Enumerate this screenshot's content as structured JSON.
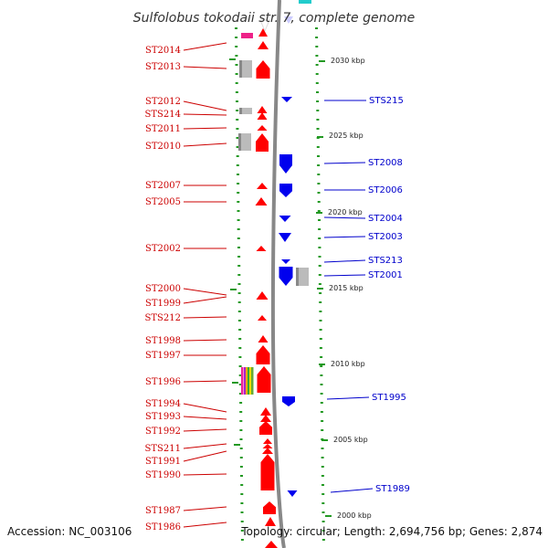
{
  "title": "Sulfolobus tokodaii str. 7, complete genome",
  "footer": {
    "accession": "Accession: NC_003106",
    "topology": "Topology: circular; Length: 2,694,756 bp; Genes: 2,874"
  },
  "colors": {
    "forward": "#ff0000",
    "reverse": "#0000ee",
    "pseudogene": "#bbbbbb",
    "rna": "#ee2288",
    "tick": "#229922",
    "backbone": "#888888"
  },
  "scale_labels": [
    "2030 kbp",
    "2025 kbp",
    "2020 kbp",
    "2015 kbp",
    "2010 kbp",
    "2005 kbp",
    "2000 kbp"
  ],
  "left_labels": [
    "ST2014",
    "ST2013",
    "ST2012",
    "STS214",
    "ST2011",
    "ST2010",
    "ST2007",
    "ST2005",
    "ST2002",
    "ST2000",
    "ST1999",
    "STS212",
    "ST1998",
    "ST1997",
    "ST1996",
    "ST1994",
    "ST1993",
    "ST1992",
    "STS211",
    "ST1991",
    "ST1990",
    "ST1987",
    "ST1986"
  ],
  "right_labels": [
    "STS215",
    "ST2008",
    "ST2006",
    "ST2004",
    "ST2003",
    "STS213",
    "ST2001",
    "ST1995",
    "ST1989"
  ]
}
